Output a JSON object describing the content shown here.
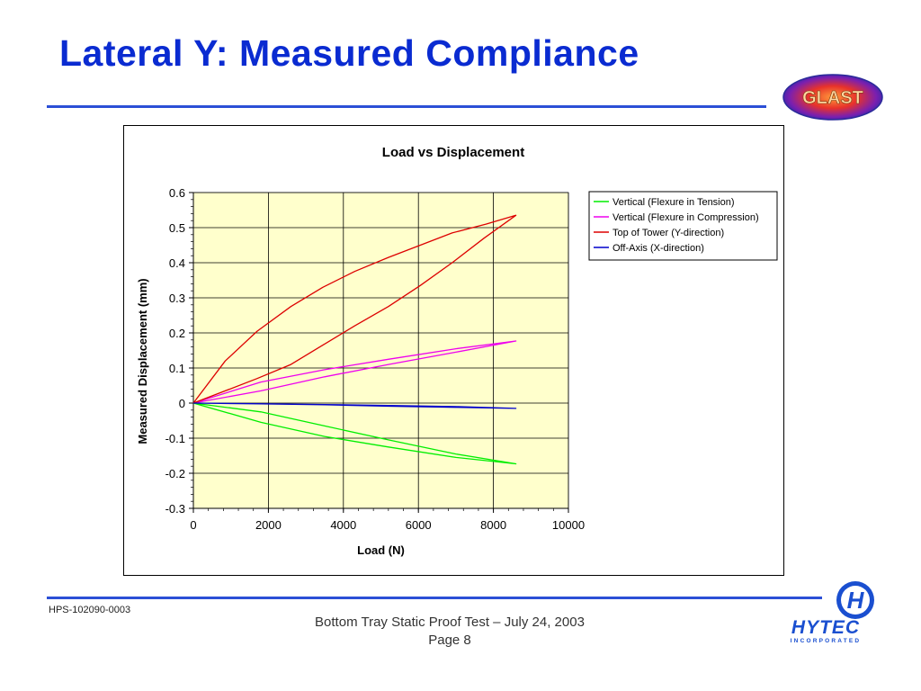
{
  "slide": {
    "title": "Lateral Y: Measured Compliance",
    "doc_id": "HPS-102090-0003",
    "footer_line1": "Bottom Tray Static Proof Test – July 24, 2003",
    "footer_line2": "Page 8",
    "logo_left_text": "GLAST",
    "logo_right_text": "HYTEC",
    "logo_right_sub": "INCORPORATED",
    "logo_right_glyph": "H"
  },
  "colors": {
    "title": "#0a2bd1",
    "rule": "#2b4fd6",
    "plot_bg": "#ffffcc"
  },
  "chart_data": {
    "type": "line",
    "title": "Load vs Displacement",
    "xlabel": "Load (N)",
    "ylabel": "Measured Displacement (mm)",
    "xlim": [
      0,
      10000
    ],
    "ylim": [
      -0.3,
      0.6
    ],
    "xticks": [
      0,
      2000,
      4000,
      6000,
      8000,
      10000
    ],
    "yticks": [
      -0.3,
      -0.2,
      -0.1,
      0,
      0.1,
      0.2,
      0.3,
      0.4,
      0.5,
      0.6
    ],
    "ytick_labels": [
      "-0.3",
      "-0.2",
      "-0.1",
      "0",
      "0.1",
      "0.2",
      "0.3",
      "0.4",
      "0.5",
      "0.6"
    ],
    "grid": true,
    "legend_position": "right",
    "series": [
      {
        "name": "Vertical (Flexure in Tension)",
        "color": "#00ee00",
        "x": [
          0,
          1800,
          3500,
          5200,
          7000,
          8600,
          7000,
          5200,
          3500,
          1800,
          0
        ],
        "y": [
          0,
          -0.055,
          -0.095,
          -0.125,
          -0.155,
          -0.173,
          -0.145,
          -0.105,
          -0.065,
          -0.025,
          0
        ]
      },
      {
        "name": "Vertical (Flexure in Compression)",
        "color": "#ee00ee",
        "x": [
          0,
          1800,
          3500,
          5200,
          7000,
          8600,
          7000,
          5200,
          3500,
          1800,
          0
        ],
        "y": [
          0,
          0.035,
          0.075,
          0.11,
          0.145,
          0.177,
          0.155,
          0.125,
          0.095,
          0.06,
          0
        ]
      },
      {
        "name": "Top of Tower (Y-direction)",
        "color": "#dd0000",
        "x": [
          0,
          850,
          1700,
          2600,
          3450,
          4300,
          5200,
          6050,
          6900,
          7800,
          8600,
          7750,
          6900,
          6050,
          5200,
          4300,
          3450,
          2600,
          1700,
          850,
          0
        ],
        "y": [
          0,
          0.12,
          0.205,
          0.275,
          0.33,
          0.375,
          0.415,
          0.45,
          0.485,
          0.51,
          0.535,
          0.47,
          0.4,
          0.335,
          0.275,
          0.22,
          0.165,
          0.11,
          0.07,
          0.035,
          0
        ]
      },
      {
        "name": "Off-Axis (X-direction)",
        "color": "#0000cc",
        "x": [
          0,
          1800,
          3500,
          5200,
          7000,
          8600,
          7000,
          5200,
          3500,
          1800,
          0
        ],
        "y": [
          0,
          -0.002,
          -0.004,
          -0.007,
          -0.01,
          -0.015,
          -0.012,
          -0.009,
          -0.005,
          -0.002,
          0
        ]
      }
    ]
  }
}
